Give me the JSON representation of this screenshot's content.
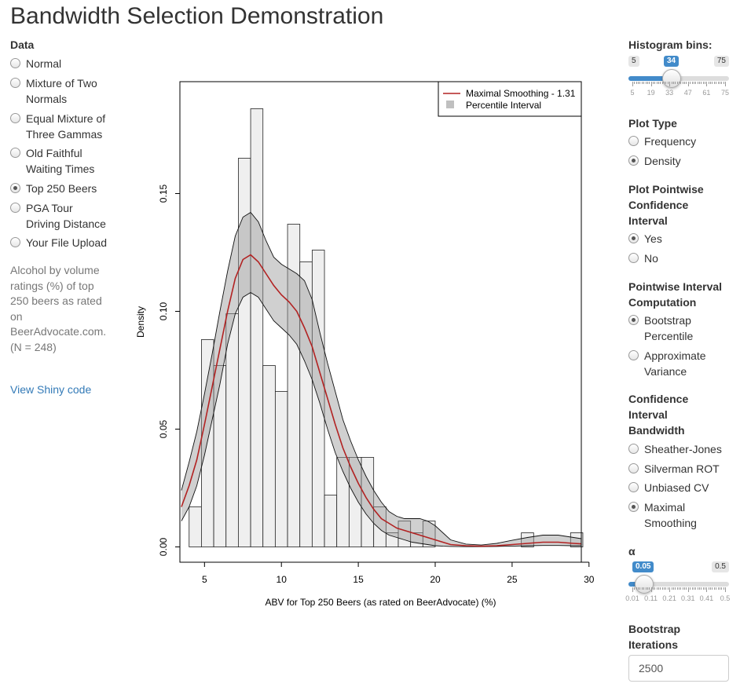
{
  "title": "Bandwidth Selection Demonstration",
  "data_section": {
    "label": "Data",
    "options": [
      {
        "label_lines": [
          "Normal"
        ],
        "selected": false
      },
      {
        "label_lines": [
          "Mixture of Two",
          "Normals"
        ],
        "selected": false
      },
      {
        "label_lines": [
          "Equal Mixture of",
          "Three Gammas"
        ],
        "selected": false
      },
      {
        "label_lines": [
          "Old Faithful",
          "Waiting Times"
        ],
        "selected": false
      },
      {
        "label_lines": [
          "Top 250 Beers"
        ],
        "selected": true
      },
      {
        "label_lines": [
          "PGA Tour",
          "Driving Distance"
        ],
        "selected": false
      },
      {
        "label_lines": [
          "Your File Upload"
        ],
        "selected": false
      }
    ],
    "description": "Alcohol by volume ratings (%) of top 250 beers as rated on BeerAdvocate.com. (N = 248)",
    "code_link": "View Shiny code"
  },
  "controls": {
    "histogram_bins": {
      "label": "Histogram bins:",
      "min": "5",
      "max": "75",
      "value": "34",
      "ticks": [
        "5",
        "19",
        "33",
        "47",
        "61",
        "75"
      ]
    },
    "plot_type": {
      "label": "Plot Type",
      "options": [
        {
          "label_lines": [
            "Frequency"
          ],
          "selected": false
        },
        {
          "label_lines": [
            "Density"
          ],
          "selected": true
        }
      ]
    },
    "pointwise_ci": {
      "label_lines": [
        "Plot Pointwise",
        "Confidence",
        "Interval"
      ],
      "options": [
        {
          "label_lines": [
            "Yes"
          ],
          "selected": true
        },
        {
          "label_lines": [
            "No"
          ],
          "selected": false
        }
      ]
    },
    "interval_computation": {
      "label_lines": [
        "Pointwise Interval",
        "Computation"
      ],
      "options": [
        {
          "label_lines": [
            "Bootstrap",
            "Percentile"
          ],
          "selected": true
        },
        {
          "label_lines": [
            "Approximate",
            "Variance"
          ],
          "selected": false
        }
      ]
    },
    "ci_bandwidth": {
      "label_lines": [
        "Confidence",
        "Interval",
        "Bandwidth"
      ],
      "options": [
        {
          "label_lines": [
            "Sheather-Jones"
          ],
          "selected": false
        },
        {
          "label_lines": [
            "Silverman ROT"
          ],
          "selected": false
        },
        {
          "label_lines": [
            "Unbiased CV"
          ],
          "selected": false
        },
        {
          "label_lines": [
            "Maximal",
            "Smoothing"
          ],
          "selected": true
        }
      ]
    },
    "alpha": {
      "label": "α",
      "min": "0.01",
      "max": "0.5",
      "value": "0.05",
      "ticks": [
        "0.01",
        "0.11",
        "0.21",
        "0.31",
        "0.41",
        "0.5"
      ]
    },
    "bootstrap": {
      "label_lines": [
        "Bootstrap",
        "Iterations"
      ],
      "value": "2500"
    }
  },
  "chart_data": {
    "type": "histogram",
    "xlabel": "ABV for Top 250 Beers (as rated on BeerAdvocate) (%)",
    "ylabel": "Density",
    "xlim": [
      3.4,
      29.5
    ],
    "ylim": [
      -0.0065,
      0.1975
    ],
    "x_ticks": [
      "5",
      "10",
      "15",
      "20",
      "25",
      "30"
    ],
    "y_ticks": [
      "0.00",
      "0.05",
      "0.10",
      "0.15"
    ],
    "legend": {
      "position": "top-right",
      "entries": [
        "Maximal Smoothing - 1.31",
        "Percentile Interval"
      ],
      "colors": [
        "#b22222",
        "#c0c0c0"
      ]
    },
    "bins": [
      {
        "x0": 4.0,
        "x1": 4.8,
        "y": 0.017
      },
      {
        "x0": 4.8,
        "x1": 5.6,
        "y": 0.088
      },
      {
        "x0": 5.6,
        "x1": 6.4,
        "y": 0.077
      },
      {
        "x0": 6.4,
        "x1": 7.2,
        "y": 0.099
      },
      {
        "x0": 7.2,
        "x1": 8.0,
        "y": 0.165
      },
      {
        "x0": 8.0,
        "x1": 8.8,
        "y": 0.186
      },
      {
        "x0": 8.8,
        "x1": 9.6,
        "y": 0.077
      },
      {
        "x0": 9.6,
        "x1": 10.4,
        "y": 0.066
      },
      {
        "x0": 10.4,
        "x1": 11.2,
        "y": 0.137
      },
      {
        "x0": 11.2,
        "x1": 12.0,
        "y": 0.121
      },
      {
        "x0": 12.0,
        "x1": 12.8,
        "y": 0.126
      },
      {
        "x0": 12.8,
        "x1": 13.6,
        "y": 0.022
      },
      {
        "x0": 13.6,
        "x1": 14.4,
        "y": 0.038
      },
      {
        "x0": 14.4,
        "x1": 15.2,
        "y": 0.038
      },
      {
        "x0": 15.2,
        "x1": 16.0,
        "y": 0.038
      },
      {
        "x0": 16.0,
        "x1": 16.8,
        "y": 0.017
      },
      {
        "x0": 16.8,
        "x1": 17.6,
        "y": 0.006
      },
      {
        "x0": 17.6,
        "x1": 18.4,
        "y": 0.011
      },
      {
        "x0": 18.4,
        "x1": 19.2,
        "y": 0.006
      },
      {
        "x0": 19.2,
        "x1": 20.0,
        "y": 0.011
      },
      {
        "x0": 25.6,
        "x1": 26.4,
        "y": 0.006
      },
      {
        "x0": 28.8,
        "x1": 29.6,
        "y": 0.006
      }
    ],
    "density": {
      "x": [
        3.5,
        4.0,
        4.5,
        5.0,
        5.5,
        6.0,
        6.5,
        7.0,
        7.5,
        8.0,
        8.5,
        9.0,
        9.5,
        10.0,
        10.5,
        11.0,
        11.5,
        12.0,
        12.5,
        13.0,
        13.5,
        14.0,
        14.5,
        15.0,
        15.5,
        16.0,
        16.5,
        17.0,
        17.5,
        18.0,
        18.5,
        19.0,
        19.5,
        20.0,
        20.5,
        21.0,
        22.0,
        23.0,
        24.0,
        25.0,
        26.0,
        27.0,
        28.0,
        29.0,
        29.5
      ],
      "y": [
        0.017,
        0.026,
        0.037,
        0.052,
        0.068,
        0.084,
        0.1,
        0.114,
        0.122,
        0.124,
        0.121,
        0.116,
        0.111,
        0.107,
        0.104,
        0.1,
        0.093,
        0.085,
        0.074,
        0.063,
        0.052,
        0.042,
        0.034,
        0.027,
        0.021,
        0.016,
        0.012,
        0.01,
        0.008,
        0.007,
        0.006,
        0.005,
        0.004,
        0.003,
        0.002,
        0.001,
        0.0005,
        0.0003,
        0.0005,
        0.001,
        0.0015,
        0.002,
        0.002,
        0.0015,
        0.0013
      ],
      "lower": [
        0.011,
        0.017,
        0.026,
        0.039,
        0.054,
        0.069,
        0.086,
        0.099,
        0.106,
        0.108,
        0.106,
        0.101,
        0.096,
        0.093,
        0.09,
        0.086,
        0.079,
        0.071,
        0.061,
        0.05,
        0.04,
        0.032,
        0.025,
        0.019,
        0.014,
        0.01,
        0.007,
        0.005,
        0.004,
        0.003,
        0.002,
        0.0015,
        0.001,
        0.0005,
        0.0003,
        0.0002,
        0.0001,
        0.0001,
        0.0002,
        0.0003,
        0.0005,
        0.0006,
        0.0006,
        0.0005,
        0.0005
      ],
      "upper": [
        0.024,
        0.036,
        0.049,
        0.065,
        0.082,
        0.1,
        0.117,
        0.132,
        0.14,
        0.142,
        0.138,
        0.13,
        0.123,
        0.12,
        0.118,
        0.116,
        0.113,
        0.105,
        0.091,
        0.078,
        0.066,
        0.054,
        0.045,
        0.037,
        0.03,
        0.024,
        0.019,
        0.015,
        0.013,
        0.012,
        0.012,
        0.012,
        0.011,
        0.009,
        0.006,
        0.003,
        0.0012,
        0.0008,
        0.0015,
        0.0028,
        0.004,
        0.005,
        0.005,
        0.004,
        0.0035
      ]
    }
  }
}
